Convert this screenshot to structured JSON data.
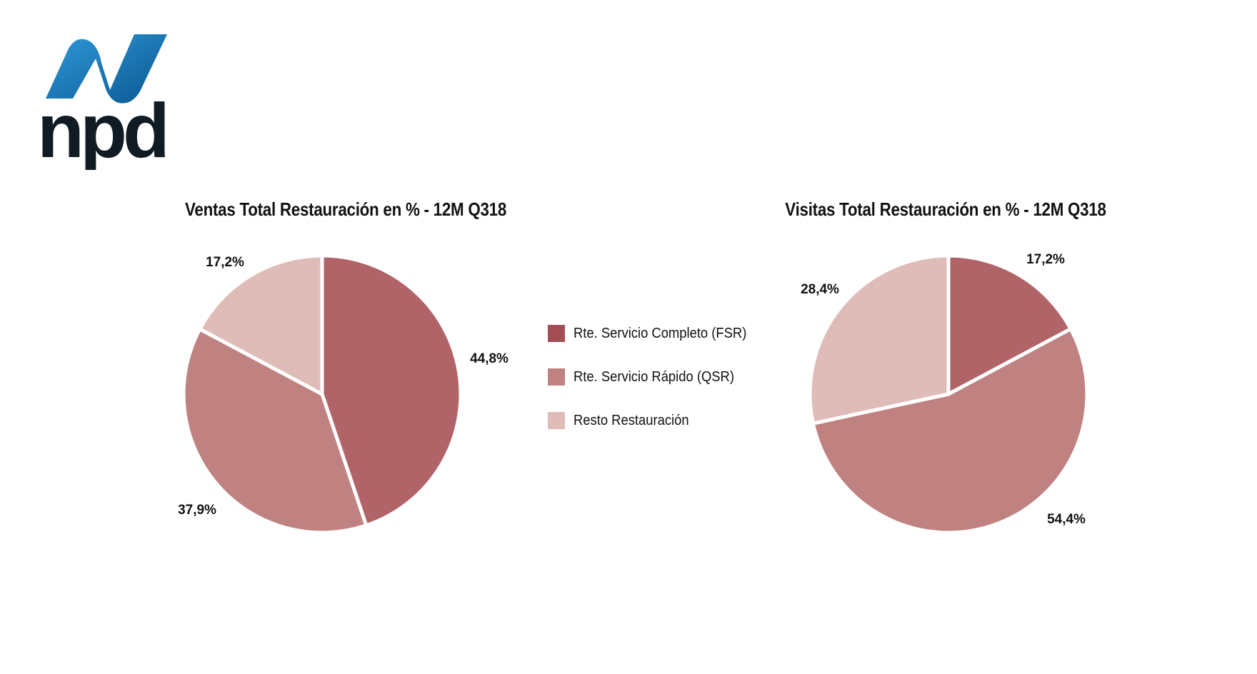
{
  "logo": {
    "text": "npd",
    "colors": {
      "blue_light": "#2a8fd4",
      "blue_dark": "#0a4f86",
      "text": "#111b24"
    }
  },
  "legend": {
    "items": [
      {
        "label": "Rte. Servicio Completo (FSR)",
        "color": "#a54d55"
      },
      {
        "label": "Rte. Servicio Rápido (QSR)",
        "color": "#c08181"
      },
      {
        "label": "Resto Restauración",
        "color": "#e0bcb9"
      }
    ]
  },
  "chart_data": [
    {
      "type": "pie",
      "title": "Ventas Total Restauración en % - 12M Q318",
      "categories": [
        "Rte. Servicio Completo (FSR)",
        "Rte. Servicio Rápido (QSR)",
        "Resto Restauración"
      ],
      "values": [
        44.8,
        37.9,
        17.2
      ],
      "data_labels": [
        "44,8%",
        "37,9%",
        "17,2%"
      ],
      "colors": [
        "#b06468",
        "#c08181",
        "#e0bcb9"
      ],
      "start": "top",
      "direction": "clockwise",
      "legend": "right"
    },
    {
      "type": "pie",
      "title": "Visitas Total Restauración en % - 12M Q318",
      "categories": [
        "Rte. Servicio Completo (FSR)",
        "Rte. Servicio Rápido (QSR)",
        "Resto Restauración"
      ],
      "values": [
        17.2,
        54.4,
        28.4
      ],
      "data_labels": [
        "17,2%",
        "54,4%",
        "28,4%"
      ],
      "colors": [
        "#b06468",
        "#c08181",
        "#e0bcb9"
      ],
      "start": "top",
      "direction": "clockwise",
      "legend": "left"
    }
  ]
}
